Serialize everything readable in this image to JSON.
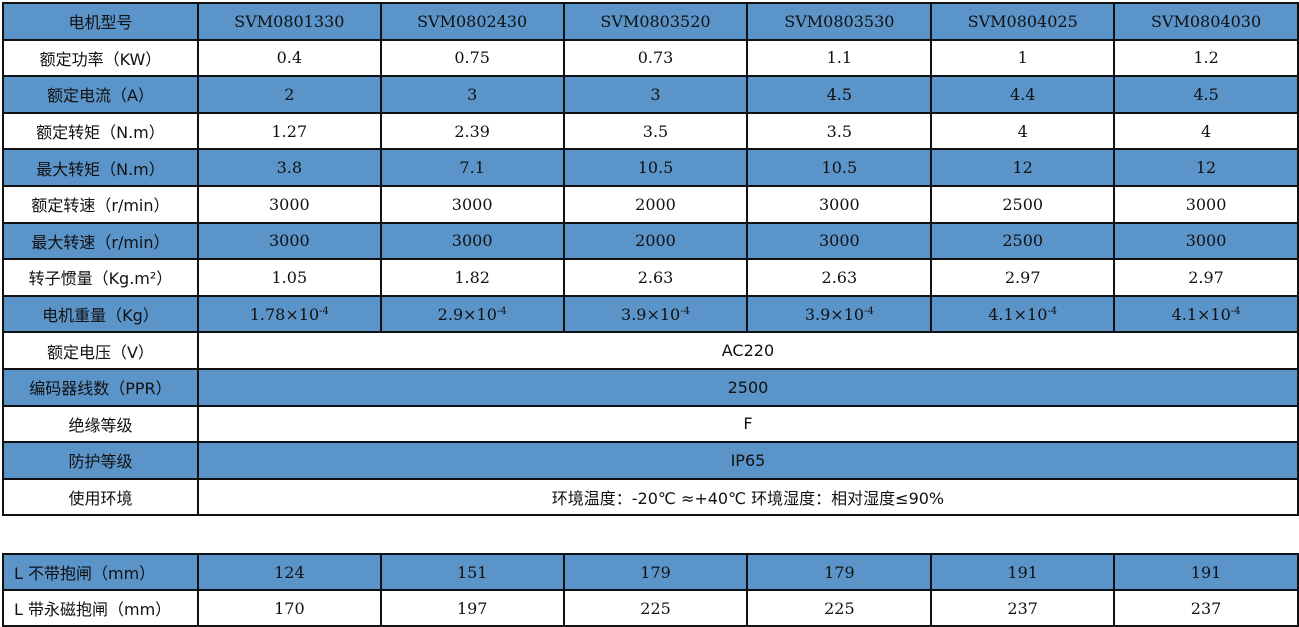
{
  "spec_table": {
    "header": {
      "label": "电机型号",
      "models": [
        "SVM0801330",
        "SVM0802430",
        "SVM0803520",
        "SVM0803530",
        "SVM0804025",
        "SVM0804030"
      ]
    },
    "rows": [
      {
        "label": "额定功率（KW）",
        "values": [
          "0.4",
          "0.75",
          "0.73",
          "1.1",
          "1",
          "1.2"
        ]
      },
      {
        "label": "额定电流（A）",
        "values": [
          "2",
          "3",
          "3",
          "4.5",
          "4.4",
          "4.5"
        ]
      },
      {
        "label": "额定转矩（N.m）",
        "values": [
          "1.27",
          "2.39",
          "3.5",
          "3.5",
          "4",
          "4"
        ]
      },
      {
        "label": "最大转矩（N.m）",
        "values": [
          "3.8",
          "7.1",
          "10.5",
          "10.5",
          "12",
          "12"
        ]
      },
      {
        "label": "额定转速（r/min）",
        "values": [
          "3000",
          "3000",
          "2000",
          "3000",
          "2500",
          "3000"
        ]
      },
      {
        "label": "最大转速（r/min）",
        "values": [
          "3000",
          "3000",
          "2000",
          "3000",
          "2500",
          "3000"
        ]
      },
      {
        "label": "转子惯量（Kg.m²）",
        "values": [
          "1.05",
          "1.82",
          "2.63",
          "2.63",
          "2.97",
          "2.97"
        ]
      },
      {
        "label": "电机重量（Kg）",
        "values": [
          {
            "base": "1.78×10",
            "exp": "-4"
          },
          {
            "base": "2.9×10",
            "exp": "-4"
          },
          {
            "base": "3.9×10",
            "exp": "-4"
          },
          {
            "base": "3.9×10",
            "exp": "-4"
          },
          {
            "base": "4.1×10",
            "exp": "-4"
          },
          {
            "base": "4.1×10",
            "exp": "-4"
          }
        ]
      },
      {
        "label": "额定电压（V）",
        "merged": "AC220"
      },
      {
        "label": "编码器线数（PPR）",
        "merged": "2500"
      },
      {
        "label": "绝缘等级",
        "merged": "F"
      },
      {
        "label": "防护等级",
        "merged": "IP65"
      },
      {
        "label": "使用环境",
        "merged": "环境温度：-20℃ ≈+40℃  环境湿度：相对湿度≤90%"
      }
    ]
  },
  "length_table": {
    "rows": [
      {
        "label": "L 不带抱闸（mm）",
        "values": [
          "124",
          "151",
          "179",
          "179",
          "191",
          "191"
        ]
      },
      {
        "label": "L 带永磁抱闸（mm）",
        "values": [
          "170",
          "197",
          "225",
          "225",
          "237",
          "237"
        ]
      }
    ]
  },
  "colors": {
    "row_highlight": "#5a94c9",
    "border": "#111111"
  }
}
